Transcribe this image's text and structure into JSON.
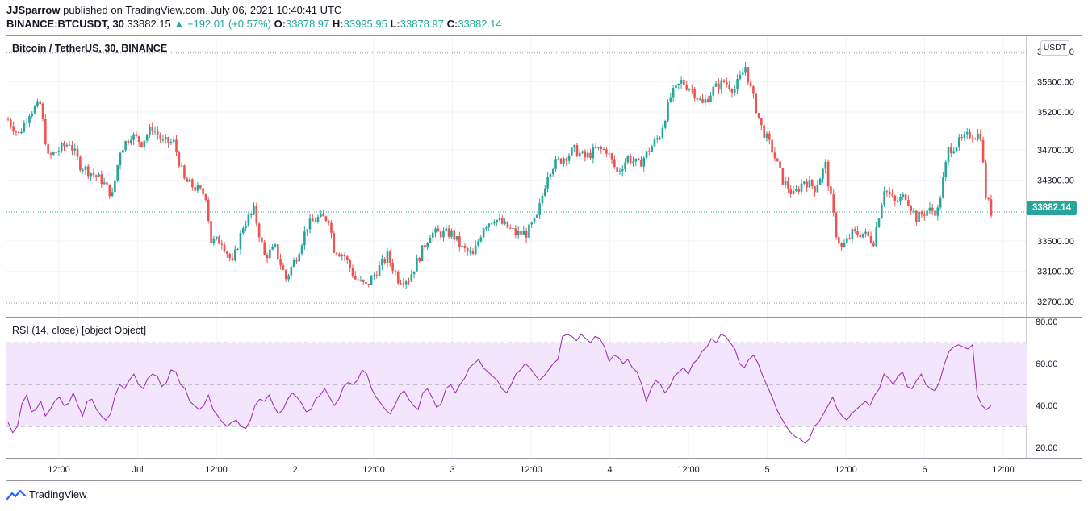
{
  "header": {
    "author": "JJSparrow",
    "published_text": "published on TradingView.com, July 06, 2021 10:40:41 UTC",
    "symbol": "BINANCE:BTCUSDT, 30",
    "last": "33882.15",
    "change": "▲ +192.01 (+0.57%)",
    "o_label": "O:",
    "o_val": "33878.97",
    "h_label": "H:",
    "h_val": "33995.95",
    "l_label": "L:",
    "l_val": "33878.97",
    "c_label": "C:",
    "c_val": "33882.14"
  },
  "chart_title": "Bitcoin / TetherUS, 30, BINANCE",
  "unit": "USDT",
  "price_tag": "33882.14",
  "rsi_title": "RSI (14, close) [object Object]",
  "footer": {
    "brand": "TradingView"
  },
  "colors": {
    "up": "#26a69a",
    "down": "#ef5350",
    "rsi_line": "#9c27b0",
    "rsi_band": "#f3e5fb"
  },
  "chart_data": [
    {
      "type": "candlestick",
      "title": "Bitcoin / TetherUS, 30, BINANCE",
      "ylim": [
        32500,
        36200
      ],
      "yticks": [
        "36000.00",
        "35600.00",
        "35200.00",
        "34700.00",
        "34300.00",
        "33500.00",
        "33100.00",
        "32700.00"
      ],
      "xticks": [
        "12:00",
        "Jul",
        "12:00",
        "2",
        "12:00",
        "3",
        "12:00",
        "4",
        "12:00",
        "5",
        "12:00",
        "6",
        "12:00"
      ],
      "last_price": 33882.14,
      "close_path": [
        [
          0,
          35100
        ],
        [
          4,
          34900
        ],
        [
          8,
          35200
        ],
        [
          12,
          35300
        ],
        [
          15,
          34600
        ],
        [
          19,
          34700
        ],
        [
          23,
          34800
        ],
        [
          27,
          34500
        ],
        [
          31,
          34400
        ],
        [
          35,
          34300
        ],
        [
          39,
          34100
        ],
        [
          42,
          34700
        ],
        [
          46,
          34900
        ],
        [
          50,
          34800
        ],
        [
          54,
          35000
        ],
        [
          58,
          34800
        ],
        [
          62,
          34800
        ],
        [
          66,
          34300
        ],
        [
          70,
          34200
        ],
        [
          74,
          34100
        ],
        [
          76,
          33500
        ],
        [
          80,
          33500
        ],
        [
          84,
          33200
        ],
        [
          88,
          33700
        ],
        [
          92,
          33900
        ],
        [
          96,
          33300
        ],
        [
          100,
          33400
        ],
        [
          104,
          33000
        ],
        [
          108,
          33300
        ],
        [
          112,
          33700
        ],
        [
          116,
          33800
        ],
        [
          120,
          33800
        ],
        [
          122,
          33400
        ],
        [
          126,
          33300
        ],
        [
          130,
          33000
        ],
        [
          134,
          32900
        ],
        [
          138,
          33100
        ],
        [
          142,
          33300
        ],
        [
          146,
          33000
        ],
        [
          150,
          33000
        ],
        [
          154,
          33300
        ],
        [
          158,
          33600
        ],
        [
          162,
          33600
        ],
        [
          166,
          33600
        ],
        [
          170,
          33400
        ],
        [
          174,
          33300
        ],
        [
          178,
          33700
        ],
        [
          182,
          33800
        ],
        [
          186,
          33700
        ],
        [
          190,
          33600
        ],
        [
          194,
          33600
        ],
        [
          198,
          33800
        ],
        [
          202,
          34400
        ],
        [
          204,
          34500
        ],
        [
          208,
          34600
        ],
        [
          212,
          34700
        ],
        [
          216,
          34600
        ],
        [
          220,
          34700
        ],
        [
          224,
          34700
        ],
        [
          228,
          34400
        ],
        [
          232,
          34600
        ],
        [
          236,
          34500
        ],
        [
          240,
          34700
        ],
        [
          244,
          34900
        ],
        [
          248,
          35400
        ],
        [
          252,
          35600
        ],
        [
          256,
          35500
        ],
        [
          260,
          35300
        ],
        [
          264,
          35500
        ],
        [
          268,
          35600
        ],
        [
          272,
          35500
        ],
        [
          276,
          35800
        ],
        [
          278,
          35500
        ],
        [
          282,
          35000
        ],
        [
          286,
          34700
        ],
        [
          290,
          34300
        ],
        [
          294,
          34100
        ],
        [
          298,
          34300
        ],
        [
          302,
          34200
        ],
        [
          306,
          34500
        ],
        [
          310,
          33600
        ],
        [
          312,
          33400
        ],
        [
          316,
          33600
        ],
        [
          320,
          33600
        ],
        [
          324,
          33500
        ],
        [
          328,
          34200
        ],
        [
          332,
          34000
        ],
        [
          336,
          34100
        ],
        [
          340,
          33800
        ],
        [
          344,
          33900
        ],
        [
          348,
          33900
        ],
        [
          352,
          34700
        ],
        [
          356,
          34800
        ],
        [
          360,
          34900
        ],
        [
          364,
          34900
        ],
        [
          366,
          34100
        ],
        [
          368,
          33882
        ]
      ]
    },
    {
      "type": "line",
      "title": "RSI (14, close) [object Object]",
      "ylim": [
        15,
        82
      ],
      "yticks": [
        "80.00",
        "60.00",
        "40.00",
        "20.00"
      ],
      "bands": [
        30,
        50,
        70
      ],
      "x_range": [
        0,
        368
      ],
      "values": [
        32,
        27,
        30,
        41,
        45,
        37,
        38,
        42,
        35,
        38,
        42,
        44,
        40,
        41,
        46,
        40,
        35,
        42,
        43,
        38,
        35,
        33,
        36,
        45,
        50,
        48,
        52,
        55,
        50,
        48,
        53,
        55,
        54,
        49,
        51,
        57,
        56,
        50,
        48,
        42,
        40,
        38,
        40,
        45,
        38,
        35,
        32,
        30,
        32,
        33,
        30,
        29,
        33,
        40,
        43,
        42,
        45,
        40,
        36,
        38,
        43,
        46,
        44,
        41,
        37,
        38,
        43,
        45,
        48,
        44,
        40,
        43,
        49,
        51,
        50,
        52,
        57,
        55,
        48,
        44,
        41,
        38,
        36,
        40,
        45,
        47,
        43,
        40,
        38,
        46,
        48,
        44,
        39,
        41,
        48,
        50,
        46,
        50,
        53,
        58,
        60,
        62,
        58,
        56,
        54,
        52,
        48,
        46,
        50,
        55,
        57,
        60,
        58,
        55,
        52,
        54,
        57,
        60,
        62,
        73,
        74,
        73,
        71,
        74,
        72,
        70,
        73,
        72,
        68,
        61,
        64,
        63,
        60,
        62,
        58,
        56,
        50,
        42,
        48,
        52,
        50,
        46,
        49,
        54,
        56,
        58,
        55,
        60,
        62,
        66,
        68,
        72,
        70,
        74,
        73,
        70,
        67,
        60,
        58,
        62,
        64,
        60,
        54,
        49,
        44,
        38,
        34,
        30,
        27,
        25,
        24,
        22,
        24,
        30,
        32,
        36,
        40,
        44,
        38,
        35,
        33,
        36,
        38,
        40,
        42,
        40,
        45,
        48,
        55,
        53,
        50,
        54,
        56,
        49,
        48,
        52,
        55,
        50,
        48,
        47,
        52,
        60,
        66,
        68,
        69,
        68,
        67,
        69,
        45,
        40,
        38,
        40
      ]
    }
  ]
}
